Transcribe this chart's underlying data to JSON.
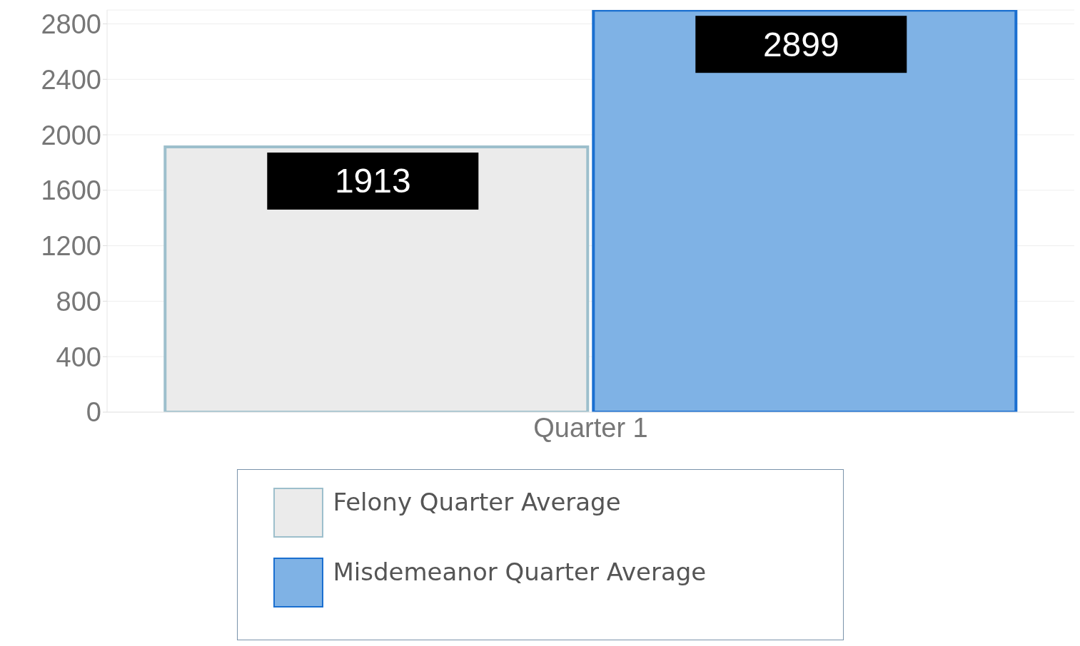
{
  "chart_data": {
    "type": "bar",
    "categories": [
      "Quarter 1"
    ],
    "series": [
      {
        "name": "Felony Quarter Average",
        "color": "#ebebeb",
        "values": [
          1913
        ]
      },
      {
        "name": "Misdemeanor Quarter Average",
        "color": "#7fb2e5",
        "values": [
          2899
        ]
      }
    ],
    "ylim": [
      0,
      2900
    ],
    "yticks": [
      0,
      400,
      800,
      1200,
      1600,
      2000,
      2400,
      2800
    ],
    "grid": "y",
    "legend": "bottom",
    "data_labels": true
  }
}
